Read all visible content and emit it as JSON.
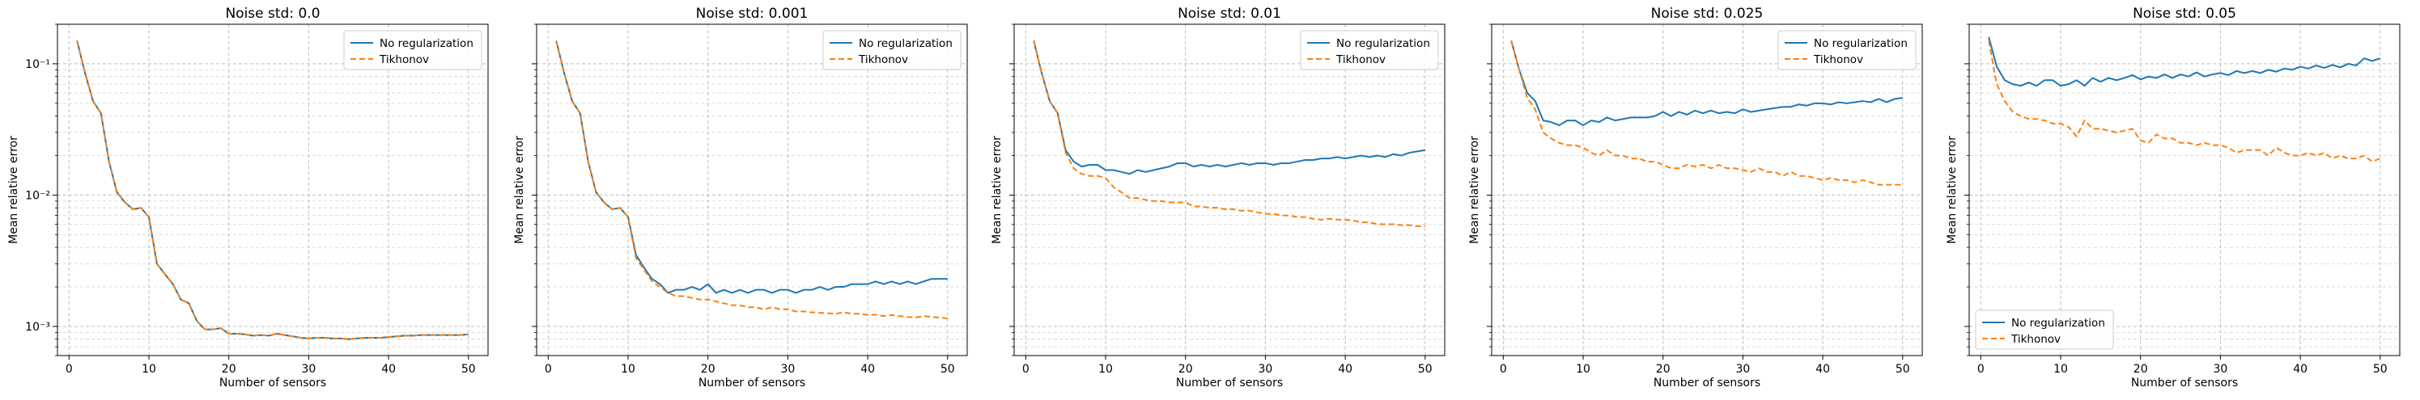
{
  "figure": {
    "shared_ylabel": "Mean relative error",
    "shared_xlabel": "Number of sensors"
  },
  "colors": {
    "no_regularization": "#1f77b4",
    "tikhonov": "#ff7f0e",
    "grid": "#b0b0b0"
  },
  "chart_data": [
    {
      "type": "line",
      "title": "Noise std: 0.0",
      "xlabel": "Number of sensors",
      "ylabel": "Mean relative error",
      "yscale": "log",
      "xlim": [
        -1.45,
        52.45
      ],
      "ylim": [
        0.0006,
        0.2
      ],
      "xticks": [
        0,
        10,
        20,
        30,
        40,
        50
      ],
      "xtick_labels": [
        "0",
        "10",
        "20",
        "30",
        "40",
        "50"
      ],
      "yticks": [
        0.001,
        0.01,
        0.1
      ],
      "ytick_labels": [
        "10⁻³",
        "10⁻²",
        "10⁻¹"
      ],
      "grid": true,
      "legend_position": "upper right",
      "x": [
        1,
        2,
        3,
        4,
        5,
        6,
        7,
        8,
        9,
        10,
        11,
        12,
        13,
        14,
        15,
        16,
        17,
        18,
        19,
        20,
        21,
        22,
        23,
        24,
        25,
        26,
        27,
        28,
        29,
        30,
        31,
        32,
        33,
        34,
        35,
        36,
        37,
        38,
        39,
        40,
        41,
        42,
        43,
        44,
        45,
        46,
        47,
        48,
        49,
        50
      ],
      "series": [
        {
          "name": "No regularization",
          "style": "solid",
          "values": [
            0.15,
            0.085,
            0.052,
            0.042,
            0.018,
            0.0105,
            0.0088,
            0.0078,
            0.008,
            0.0068,
            0.003,
            0.0025,
            0.0021,
            0.0016,
            0.0015,
            0.0011,
            0.00095,
            0.00095,
            0.00097,
            0.00088,
            0.00088,
            0.00087,
            0.00085,
            0.00086,
            0.00085,
            0.00088,
            0.00086,
            0.00084,
            0.00082,
            0.00081,
            0.00082,
            0.00082,
            0.00081,
            0.00081,
            0.0008,
            0.00081,
            0.00082,
            0.00082,
            0.00082,
            0.00083,
            0.00084,
            0.00085,
            0.00085,
            0.00086,
            0.00086,
            0.00086,
            0.00086,
            0.00086,
            0.00086,
            0.00087
          ]
        },
        {
          "name": "Tikhonov",
          "style": "dashed",
          "values": [
            0.15,
            0.085,
            0.052,
            0.042,
            0.018,
            0.0105,
            0.0088,
            0.0078,
            0.008,
            0.0068,
            0.003,
            0.0025,
            0.0021,
            0.0016,
            0.0015,
            0.0011,
            0.00095,
            0.00095,
            0.00097,
            0.00088,
            0.00088,
            0.00087,
            0.00085,
            0.00086,
            0.00085,
            0.00088,
            0.00086,
            0.00084,
            0.00082,
            0.00081,
            0.00082,
            0.00082,
            0.00081,
            0.00081,
            0.0008,
            0.00081,
            0.00082,
            0.00082,
            0.00082,
            0.00083,
            0.00084,
            0.00085,
            0.00085,
            0.00086,
            0.00086,
            0.00086,
            0.00086,
            0.00086,
            0.00086,
            0.00087
          ]
        }
      ]
    },
    {
      "type": "line",
      "title": "Noise std: 0.001",
      "xlabel": "Number of sensors",
      "ylabel": "Mean relative error",
      "yscale": "log",
      "xlim": [
        -1.45,
        52.45
      ],
      "ylim": [
        0.0006,
        0.2
      ],
      "xticks": [
        0,
        10,
        20,
        30,
        40,
        50
      ],
      "xtick_labels": [
        "0",
        "10",
        "20",
        "30",
        "40",
        "50"
      ],
      "grid": true,
      "legend_position": "upper right",
      "x": [
        1,
        2,
        3,
        4,
        5,
        6,
        7,
        8,
        9,
        10,
        11,
        12,
        13,
        14,
        15,
        16,
        17,
        18,
        19,
        20,
        21,
        22,
        23,
        24,
        25,
        26,
        27,
        28,
        29,
        30,
        31,
        32,
        33,
        34,
        35,
        36,
        37,
        38,
        39,
        40,
        41,
        42,
        43,
        44,
        45,
        46,
        47,
        48,
        49,
        50
      ],
      "series": [
        {
          "name": "No regularization",
          "style": "solid",
          "values": [
            0.15,
            0.085,
            0.052,
            0.042,
            0.018,
            0.0105,
            0.0088,
            0.0078,
            0.008,
            0.0068,
            0.0035,
            0.0028,
            0.0023,
            0.0021,
            0.0018,
            0.0019,
            0.0019,
            0.002,
            0.0019,
            0.0021,
            0.0018,
            0.0019,
            0.0018,
            0.0019,
            0.0018,
            0.0019,
            0.0019,
            0.0018,
            0.0019,
            0.0019,
            0.0018,
            0.0019,
            0.0019,
            0.002,
            0.0019,
            0.002,
            0.002,
            0.0021,
            0.0021,
            0.0021,
            0.0022,
            0.0021,
            0.0022,
            0.0021,
            0.0022,
            0.0021,
            0.0022,
            0.0023,
            0.0023,
            0.0023
          ]
        },
        {
          "name": "Tikhonov",
          "style": "dashed",
          "values": [
            0.15,
            0.085,
            0.052,
            0.042,
            0.018,
            0.0105,
            0.0088,
            0.0078,
            0.008,
            0.0068,
            0.0033,
            0.0027,
            0.0022,
            0.002,
            0.0018,
            0.0017,
            0.0017,
            0.00165,
            0.0016,
            0.0016,
            0.00155,
            0.0015,
            0.00145,
            0.00145,
            0.0014,
            0.0014,
            0.00135,
            0.0014,
            0.00135,
            0.00135,
            0.0013,
            0.0013,
            0.00128,
            0.00127,
            0.00126,
            0.00125,
            0.00128,
            0.00125,
            0.00125,
            0.00122,
            0.00123,
            0.0012,
            0.00122,
            0.0012,
            0.00118,
            0.00117,
            0.0012,
            0.00118,
            0.00117,
            0.00115
          ]
        }
      ]
    },
    {
      "type": "line",
      "title": "Noise std: 0.01",
      "xlabel": "Number of sensors",
      "ylabel": "Mean relative error",
      "yscale": "log",
      "xlim": [
        -1.45,
        52.45
      ],
      "ylim": [
        0.0006,
        0.2
      ],
      "xticks": [
        0,
        10,
        20,
        30,
        40,
        50
      ],
      "xtick_labels": [
        "0",
        "10",
        "20",
        "30",
        "40",
        "50"
      ],
      "grid": true,
      "legend_position": "upper right",
      "x": [
        1,
        2,
        3,
        4,
        5,
        6,
        7,
        8,
        9,
        10,
        11,
        12,
        13,
        14,
        15,
        16,
        17,
        18,
        19,
        20,
        21,
        22,
        23,
        24,
        25,
        26,
        27,
        28,
        29,
        30,
        31,
        32,
        33,
        34,
        35,
        36,
        37,
        38,
        39,
        40,
        41,
        42,
        43,
        44,
        45,
        46,
        47,
        48,
        49,
        50
      ],
      "series": [
        {
          "name": "No regularization",
          "style": "solid",
          "values": [
            0.15,
            0.085,
            0.052,
            0.042,
            0.022,
            0.018,
            0.0165,
            0.017,
            0.017,
            0.0155,
            0.0155,
            0.015,
            0.0145,
            0.0155,
            0.015,
            0.0155,
            0.016,
            0.0165,
            0.0175,
            0.0175,
            0.0165,
            0.017,
            0.0165,
            0.017,
            0.0165,
            0.017,
            0.0175,
            0.017,
            0.0175,
            0.0175,
            0.017,
            0.0175,
            0.0175,
            0.018,
            0.0185,
            0.0185,
            0.019,
            0.019,
            0.0195,
            0.019,
            0.0195,
            0.02,
            0.0195,
            0.02,
            0.0195,
            0.0205,
            0.02,
            0.021,
            0.0215,
            0.022
          ]
        },
        {
          "name": "Tikhonov",
          "style": "dashed",
          "values": [
            0.15,
            0.085,
            0.052,
            0.042,
            0.021,
            0.016,
            0.0145,
            0.014,
            0.014,
            0.0135,
            0.0115,
            0.0105,
            0.0095,
            0.0095,
            0.0092,
            0.009,
            0.009,
            0.0088,
            0.0088,
            0.0088,
            0.0082,
            0.0082,
            0.008,
            0.008,
            0.0078,
            0.0078,
            0.0076,
            0.0076,
            0.0074,
            0.0072,
            0.0072,
            0.007,
            0.007,
            0.0068,
            0.0068,
            0.0066,
            0.0065,
            0.0066,
            0.0065,
            0.0065,
            0.0064,
            0.0062,
            0.0062,
            0.006,
            0.006,
            0.006,
            0.0059,
            0.0059,
            0.0058,
            0.0058
          ]
        }
      ]
    },
    {
      "type": "line",
      "title": "Noise std: 0.025",
      "xlabel": "Number of sensors",
      "ylabel": "Mean relative error",
      "yscale": "log",
      "xlim": [
        -1.45,
        52.45
      ],
      "ylim": [
        0.0006,
        0.2
      ],
      "xticks": [
        0,
        10,
        20,
        30,
        40,
        50
      ],
      "xtick_labels": [
        "0",
        "10",
        "20",
        "30",
        "40",
        "50"
      ],
      "grid": true,
      "legend_position": "upper right",
      "x": [
        1,
        2,
        3,
        4,
        5,
        6,
        7,
        8,
        9,
        10,
        11,
        12,
        13,
        14,
        15,
        16,
        17,
        18,
        19,
        20,
        21,
        22,
        23,
        24,
        25,
        26,
        27,
        28,
        29,
        30,
        31,
        32,
        33,
        34,
        35,
        36,
        37,
        38,
        39,
        40,
        41,
        42,
        43,
        44,
        45,
        46,
        47,
        48,
        49,
        50
      ],
      "series": [
        {
          "name": "No regularization",
          "style": "solid",
          "values": [
            0.15,
            0.09,
            0.06,
            0.052,
            0.037,
            0.036,
            0.034,
            0.037,
            0.037,
            0.034,
            0.037,
            0.036,
            0.039,
            0.037,
            0.038,
            0.039,
            0.039,
            0.039,
            0.04,
            0.043,
            0.04,
            0.043,
            0.041,
            0.044,
            0.042,
            0.044,
            0.042,
            0.043,
            0.042,
            0.045,
            0.043,
            0.044,
            0.045,
            0.046,
            0.047,
            0.047,
            0.049,
            0.048,
            0.05,
            0.05,
            0.049,
            0.051,
            0.05,
            0.051,
            0.052,
            0.051,
            0.054,
            0.051,
            0.054,
            0.055
          ]
        },
        {
          "name": "Tikhonov",
          "style": "dashed",
          "values": [
            0.15,
            0.09,
            0.055,
            0.045,
            0.03,
            0.027,
            0.025,
            0.024,
            0.024,
            0.023,
            0.021,
            0.02,
            0.022,
            0.02,
            0.02,
            0.019,
            0.019,
            0.018,
            0.018,
            0.017,
            0.016,
            0.016,
            0.017,
            0.0165,
            0.017,
            0.016,
            0.017,
            0.016,
            0.016,
            0.0155,
            0.015,
            0.016,
            0.015,
            0.015,
            0.014,
            0.015,
            0.014,
            0.014,
            0.0135,
            0.013,
            0.0135,
            0.013,
            0.013,
            0.0125,
            0.013,
            0.0125,
            0.012,
            0.012,
            0.012,
            0.012
          ]
        }
      ]
    },
    {
      "type": "line",
      "title": "Noise std: 0.05",
      "xlabel": "Number of sensors",
      "ylabel": "Mean relative error",
      "yscale": "log",
      "xlim": [
        -1.45,
        52.45
      ],
      "ylim": [
        0.0006,
        0.2
      ],
      "xticks": [
        0,
        10,
        20,
        30,
        40,
        50
      ],
      "xtick_labels": [
        "0",
        "10",
        "20",
        "30",
        "40",
        "50"
      ],
      "grid": true,
      "legend_position": "lower left",
      "x": [
        1,
        2,
        3,
        4,
        5,
        6,
        7,
        8,
        9,
        10,
        11,
        12,
        13,
        14,
        15,
        16,
        17,
        18,
        19,
        20,
        21,
        22,
        23,
        24,
        25,
        26,
        27,
        28,
        29,
        30,
        31,
        32,
        33,
        34,
        35,
        36,
        37,
        38,
        39,
        40,
        41,
        42,
        43,
        44,
        45,
        46,
        47,
        48,
        49,
        50
      ],
      "series": [
        {
          "name": "No regularization",
          "style": "solid",
          "values": [
            0.16,
            0.095,
            0.075,
            0.07,
            0.068,
            0.072,
            0.068,
            0.075,
            0.075,
            0.068,
            0.07,
            0.075,
            0.068,
            0.078,
            0.073,
            0.078,
            0.075,
            0.078,
            0.082,
            0.076,
            0.08,
            0.078,
            0.083,
            0.078,
            0.083,
            0.08,
            0.086,
            0.08,
            0.083,
            0.085,
            0.082,
            0.088,
            0.085,
            0.088,
            0.085,
            0.09,
            0.087,
            0.092,
            0.09,
            0.095,
            0.092,
            0.097,
            0.093,
            0.098,
            0.094,
            0.1,
            0.097,
            0.11,
            0.105,
            0.11
          ]
        },
        {
          "name": "Tikhonov",
          "style": "dashed",
          "values": [
            0.15,
            0.07,
            0.052,
            0.043,
            0.04,
            0.038,
            0.038,
            0.037,
            0.035,
            0.035,
            0.033,
            0.028,
            0.037,
            0.032,
            0.032,
            0.031,
            0.03,
            0.031,
            0.032,
            0.026,
            0.025,
            0.029,
            0.027,
            0.027,
            0.025,
            0.025,
            0.024,
            0.025,
            0.024,
            0.024,
            0.023,
            0.021,
            0.022,
            0.022,
            0.022,
            0.02,
            0.023,
            0.021,
            0.02,
            0.02,
            0.021,
            0.02,
            0.021,
            0.019,
            0.02,
            0.019,
            0.019,
            0.02,
            0.018,
            0.019
          ]
        }
      ]
    }
  ]
}
